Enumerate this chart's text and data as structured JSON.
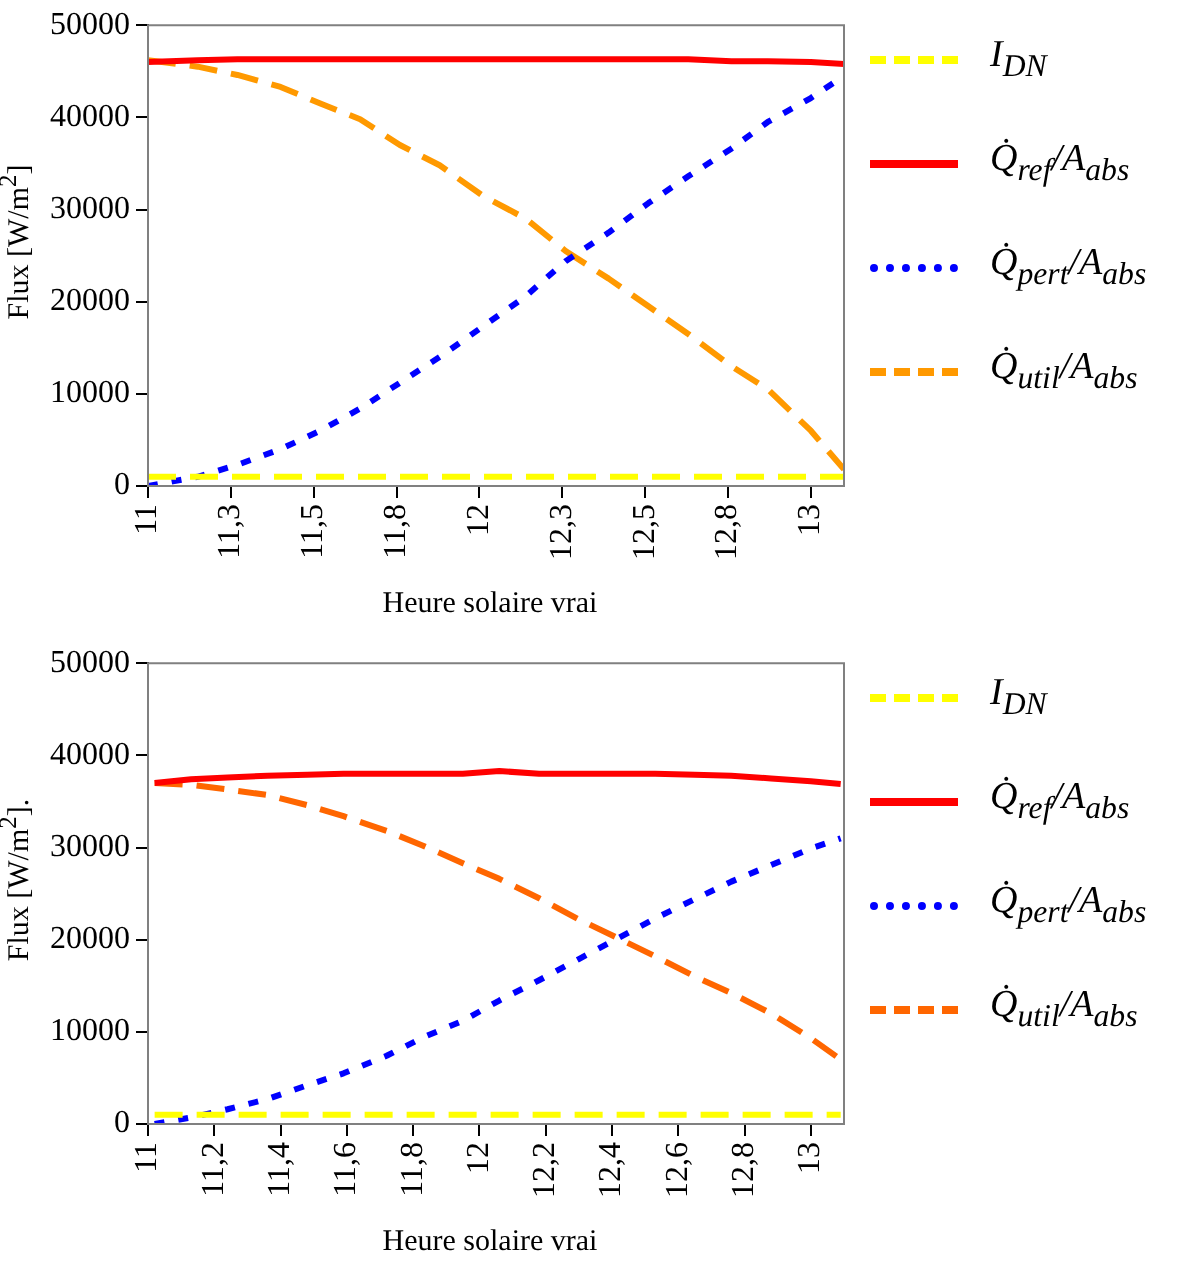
{
  "chart_data": [
    {
      "type": "line",
      "xlabel": "Heure solaire vrai",
      "ylabel": "Flux [W/m$^{2}$]",
      "xlim": [
        11,
        13.1
      ],
      "xticks": [
        11,
        {
          "value": 11.25,
          "label": "11,3"
        },
        {
          "value": 11.5,
          "label": "11,5"
        },
        {
          "value": 11.75,
          "label": "11,8"
        },
        12,
        {
          "value": 12.25,
          "label": "12,3"
        },
        {
          "value": 12.5,
          "label": "12,5"
        },
        {
          "value": 12.75,
          "label": "12,8"
        },
        13
      ],
      "ylim": [
        0,
        50000
      ],
      "yticks": [
        0,
        10000,
        20000,
        30000,
        40000,
        50000
      ],
      "grid": false,
      "legend": "right",
      "marker": "none",
      "x": [
        11.0,
        11.15,
        11.27,
        11.4,
        11.52,
        11.64,
        11.76,
        11.88,
        12.01,
        12.14,
        12.26,
        12.39,
        12.51,
        12.63,
        12.76,
        12.87,
        13.0,
        13.1
      ],
      "series": [
        {
          "name": "I$_{DN}$",
          "color": "#ffff00",
          "line_style": "dashed",
          "values": [
            1000,
            1000,
            1000,
            1000,
            1000,
            1000,
            1000,
            1000,
            1000,
            1000,
            1000,
            1000,
            1000,
            1000,
            1000,
            1000,
            1000,
            1000
          ]
        },
        {
          "name": "Q̇$_{ref}$/A$_{abs}$",
          "color": "#ff0000",
          "line_style": "solid",
          "values": [
            46000,
            46200,
            46300,
            46300,
            46300,
            46300,
            46300,
            46300,
            46300,
            46300,
            46300,
            46300,
            46300,
            46300,
            46100,
            46100,
            46000,
            45800
          ]
        },
        {
          "name": "Q̇$_{pert}$/A$_{abs}$",
          "color": "#0000ff",
          "line_style": "dotted",
          "values": [
            0,
            1000,
            2300,
            4000,
            6000,
            8400,
            11200,
            14000,
            17300,
            20600,
            24400,
            27500,
            30700,
            33600,
            36600,
            39500,
            42100,
            44500
          ]
        },
        {
          "name": "Q̇$_{util}$/A$_{abs}$",
          "color": "#ff9900",
          "line_style": "dashed",
          "values": [
            46200,
            45500,
            44600,
            43300,
            41500,
            39800,
            37000,
            34800,
            31500,
            29000,
            25500,
            22500,
            19500,
            16500,
            13000,
            10500,
            6000,
            1800
          ]
        }
      ]
    },
    {
      "type": "line",
      "xlabel": "Heure solaire vrai",
      "ylabel": "Flux [W/m$^{2}$].",
      "xlim": [
        11,
        13.1
      ],
      "xticks": [
        11,
        {
          "value": 11.2,
          "label": "11,2"
        },
        {
          "value": 11.4,
          "label": "11,4"
        },
        {
          "value": 11.6,
          "label": "11,6"
        },
        {
          "value": 11.8,
          "label": "11,8"
        },
        12,
        {
          "value": 12.2,
          "label": "12,2"
        },
        {
          "value": 12.4,
          "label": "12,4"
        },
        {
          "value": 12.6,
          "label": "12,6"
        },
        {
          "value": 12.8,
          "label": "12,8"
        },
        13
      ],
      "ylim": [
        0,
        50000
      ],
      "yticks": [
        0,
        10000,
        20000,
        30000,
        40000,
        50000
      ],
      "grid": false,
      "legend": "right",
      "marker": "none",
      "x": [
        11.02,
        11.13,
        11.24,
        11.36,
        11.48,
        11.59,
        11.72,
        11.83,
        11.95,
        12.06,
        12.18,
        12.3,
        12.41,
        12.53,
        12.65,
        12.76,
        12.88,
        13.0,
        13.09
      ],
      "series": [
        {
          "name": "I$_{DN}$",
          "color": "#ffff00",
          "line_style": "dashed",
          "values": [
            1000,
            1000,
            1000,
            1000,
            1000,
            1000,
            1000,
            1000,
            1000,
            1000,
            1000,
            1000,
            1000,
            1000,
            1000,
            1000,
            1000,
            1000,
            1000
          ]
        },
        {
          "name": "Q̇$_{ref}$/A$_{abs}$",
          "color": "#ff0000",
          "line_style": "solid",
          "values": [
            37000,
            37400,
            37600,
            37800,
            37900,
            38000,
            38000,
            38000,
            38000,
            38300,
            38000,
            38000,
            38000,
            38000,
            37900,
            37800,
            37500,
            37200,
            36900
          ]
        },
        {
          "name": "Q̇$_{pert}$/A$_{abs}$",
          "color": "#0000ff",
          "line_style": "dotted",
          "values": [
            0,
            700,
            1600,
            2700,
            4200,
            5500,
            7400,
            9400,
            11200,
            13400,
            15600,
            17900,
            20000,
            22300,
            24400,
            26300,
            28100,
            29900,
            31000
          ]
        },
        {
          "name": "Q̇$_{util}$/A$_{abs}$",
          "color": "#ff6600",
          "line_style": "dashed",
          "values": [
            37000,
            36800,
            36300,
            35700,
            34600,
            33400,
            31800,
            30200,
            28300,
            26600,
            24500,
            22200,
            20300,
            18200,
            16000,
            14200,
            12000,
            9300,
            7000
          ]
        }
      ]
    }
  ]
}
